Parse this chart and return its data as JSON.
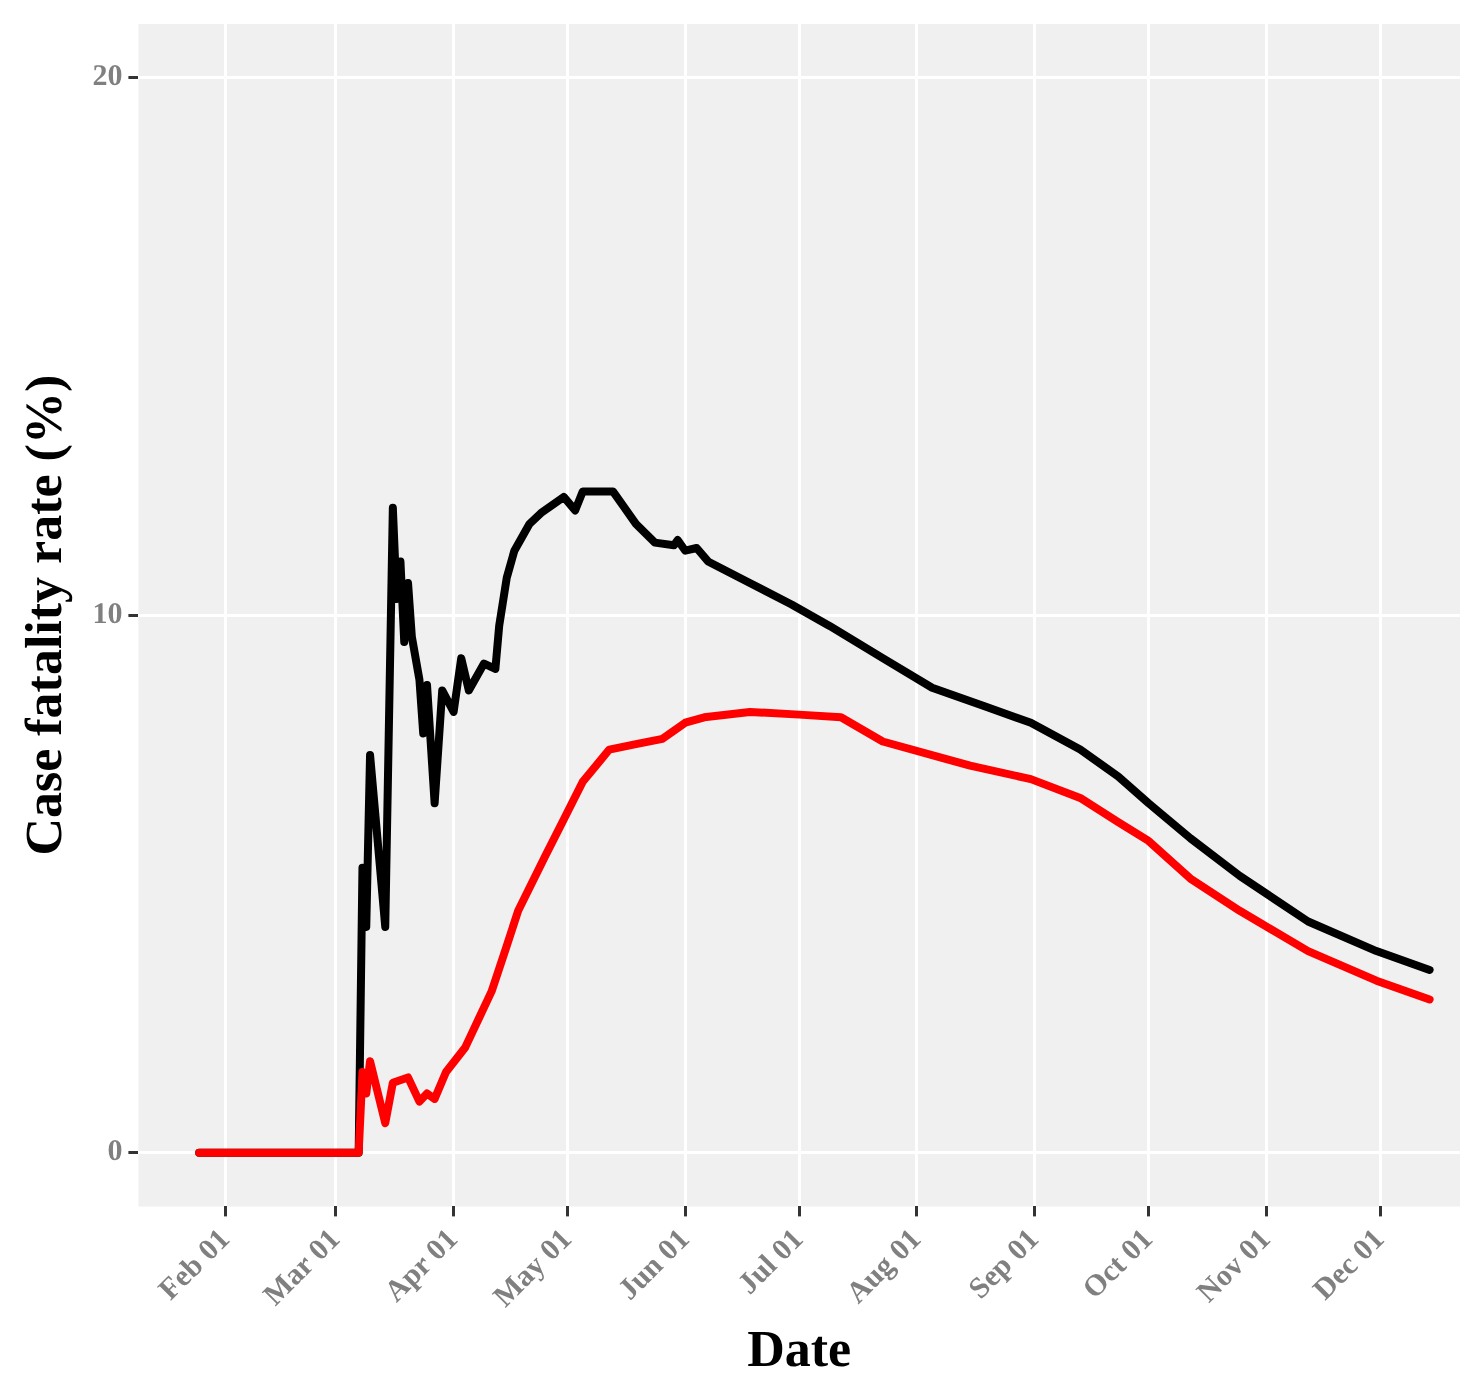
{
  "chart_data": {
    "type": "line",
    "xlabel": "Date",
    "ylabel": "Case fatality rate (%)",
    "xlim": [
      "--01-09",
      "--12-22"
    ],
    "ylim": [
      -1,
      21
    ],
    "yticks": [
      0,
      10,
      20
    ],
    "xticks": [
      {
        "value": "--02-01",
        "label": "Feb 01"
      },
      {
        "value": "--03-01",
        "label": "Mar 01"
      },
      {
        "value": "--04-01",
        "label": "Apr 01"
      },
      {
        "value": "--05-01",
        "label": "May 01"
      },
      {
        "value": "--06-01",
        "label": "Jun 01"
      },
      {
        "value": "--07-01",
        "label": "Jul 01"
      },
      {
        "value": "--08-01",
        "label": "Aug 01"
      },
      {
        "value": "--09-01",
        "label": "Sep 01"
      },
      {
        "value": "--10-01",
        "label": "Oct 01"
      },
      {
        "value": "--11-01",
        "label": "Nov 01"
      },
      {
        "value": "--12-01",
        "label": "Dec 01"
      }
    ],
    "grid": true,
    "legend": false,
    "marker": "none",
    "line_style": "solid",
    "series": [
      {
        "color": "#ff0000",
        "x": [
          "--01-25",
          "--03-07",
          "--03-08",
          "--03-09",
          "--03-10",
          "--03-14",
          "--03-16",
          "--03-20",
          "--03-23",
          "--03-25",
          "--03-27",
          "--03-30",
          "--04-04",
          "--04-11",
          "--04-15",
          "--04-18",
          "--04-25",
          "--04-30",
          "--05-05",
          "--05-12",
          "--05-19",
          "--05-26",
          "--06-01",
          "--06-06",
          "--06-18",
          "--07-01",
          "--07-12",
          "--07-23",
          "--08-15",
          "--08-31",
          "--09-13",
          "--09-23",
          "--10-01",
          "--10-12",
          "--10-25",
          "--11-12",
          "--11-30",
          "--12-14"
        ],
        "values": [
          0,
          0,
          1.5,
          1.1,
          1.7,
          0.55,
          1.3,
          1.4,
          0.95,
          1.1,
          1.0,
          1.5,
          1.95,
          3.0,
          3.85,
          4.5,
          5.5,
          6.2,
          6.9,
          7.5,
          7.6,
          7.7,
          8.0,
          8.1,
          8.2,
          8.15,
          8.1,
          7.65,
          7.2,
          6.95,
          6.6,
          6.15,
          5.8,
          5.1,
          4.5,
          3.75,
          3.2,
          2.85
        ]
      },
      {
        "color": "#000000",
        "x": [
          "--01-25",
          "--03-07",
          "--03-08",
          "--03-09",
          "--03-10",
          "--03-14",
          "--03-16",
          "--03-17",
          "--03-18",
          "--03-19",
          "--03-20",
          "--03-21",
          "--03-23",
          "--03-24",
          "--03-25",
          "--03-27",
          "--03-29",
          "--04-01",
          "--04-03",
          "--04-05",
          "--04-09",
          "--04-12",
          "--04-13",
          "--04-15",
          "--04-17",
          "--04-21",
          "--04-24",
          "--04-30",
          "--05-03",
          "--05-05",
          "--05-13",
          "--05-19",
          "--05-24",
          "--05-29",
          "--05-30",
          "--06-01",
          "--06-04",
          "--06-07",
          "--06-18",
          "--06-29",
          "--07-09",
          "--07-23",
          "--08-05",
          "--08-19",
          "--08-31",
          "--09-13",
          "--09-23",
          "--10-01",
          "--10-12",
          "--10-25",
          "--11-12",
          "--11-30",
          "--12-14"
        ],
        "values": [
          0,
          0,
          5.3,
          4.2,
          7.4,
          4.2,
          12.0,
          10.3,
          11.0,
          9.5,
          10.6,
          9.6,
          8.8,
          7.8,
          8.7,
          6.5,
          8.6,
          8.2,
          9.2,
          8.6,
          9.1,
          9.0,
          9.8,
          10.7,
          11.2,
          11.7,
          11.9,
          12.2,
          11.95,
          12.3,
          12.3,
          11.7,
          11.35,
          11.3,
          11.4,
          11.2,
          11.25,
          11.0,
          10.6,
          10.2,
          9.8,
          9.2,
          8.65,
          8.3,
          8.0,
          7.5,
          7.0,
          6.5,
          5.85,
          5.15,
          4.3,
          3.75,
          3.4
        ]
      }
    ]
  }
}
